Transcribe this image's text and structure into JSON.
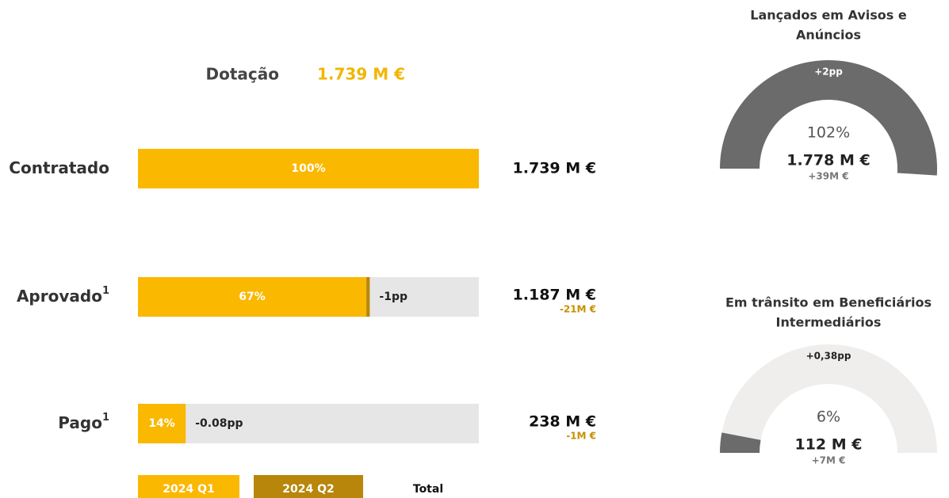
{
  "dotacao": {
    "label": "Dotação",
    "value": "1.739 M €"
  },
  "rows": [
    {
      "label": "Contratado",
      "note": null,
      "q1": 100,
      "q1_label": "100%",
      "q2": 0,
      "change": null,
      "total": "1.739 M €",
      "delta": null
    },
    {
      "label": "Aprovado",
      "note": "1",
      "q1": 67,
      "q1_label": "67%",
      "q2": 1,
      "change": "-1pp",
      "total": "1.187 M €",
      "delta": "-21M €"
    },
    {
      "label": "Pago",
      "note": "1",
      "q1": 14,
      "q1_label": "14%",
      "q2": 0,
      "change": "-0.08pp",
      "total": "238 M €",
      "delta": "-1M €"
    }
  ],
  "legend": [
    "2024 Q1",
    "2024 Q2",
    "Total"
  ],
  "gauges": [
    {
      "title": [
        "Lançados em Avisos e",
        "Anúncios"
      ],
      "change": "+2pp",
      "value": 102,
      "value_label": "102%",
      "amount": "1.778 M €",
      "delta": "+39M €"
    },
    {
      "title": [
        "Em trânsito em Beneficiários",
        "Intermediários"
      ],
      "change": "+0,38pp",
      "value": 6,
      "value_label": "6%",
      "amount": "112 M €",
      "delta": "+7M €"
    }
  ]
}
